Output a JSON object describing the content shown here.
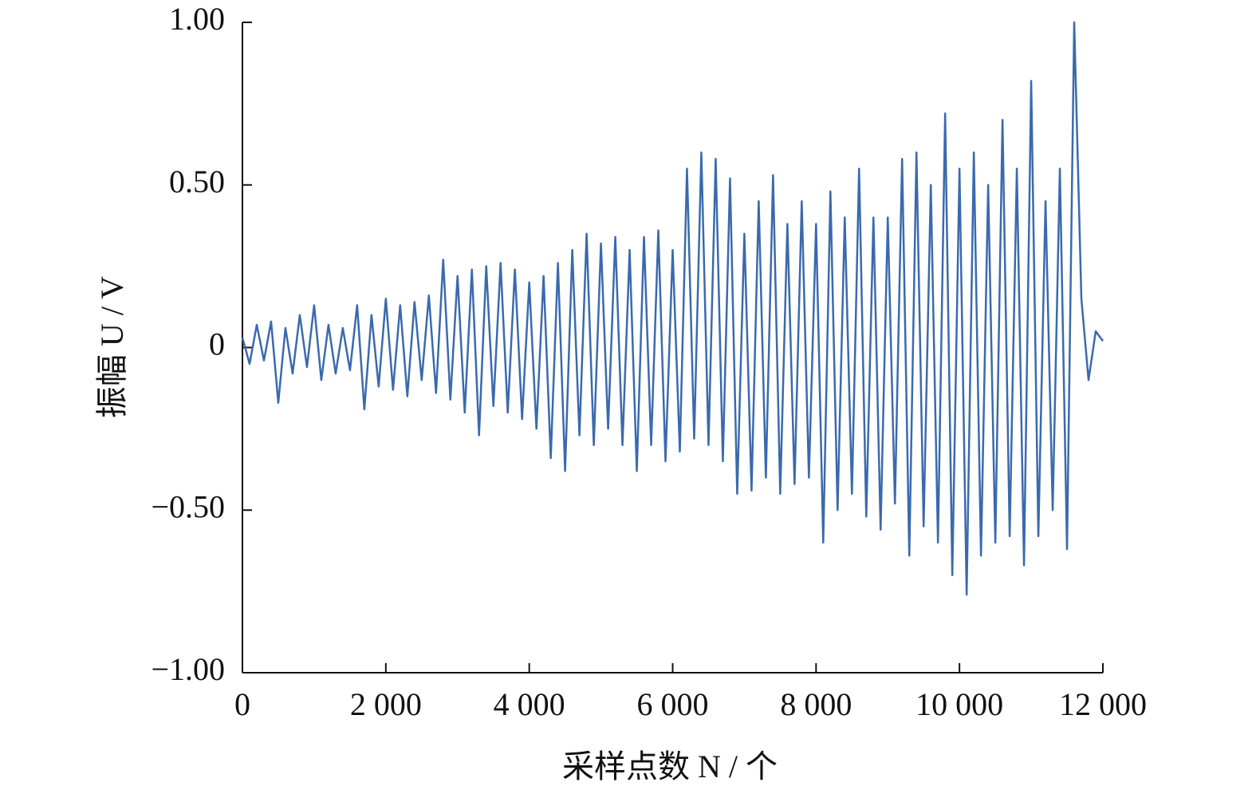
{
  "chart_data": {
    "type": "line",
    "x_label": "采样点数 N / 个",
    "y_label": "振幅 U / V",
    "xlim": [
      0,
      12000
    ],
    "ylim": [
      -1,
      1
    ],
    "xticks": [
      0,
      {
        "value": 2000,
        "label": "2 000"
      },
      {
        "value": 4000,
        "label": "4 000"
      },
      {
        "value": 6000,
        "label": "6 000"
      },
      {
        "value": 8000,
        "label": "8 000"
      },
      {
        "value": 10000,
        "label": "10 000"
      },
      {
        "value": 12000,
        "label": "12 000"
      }
    ],
    "yticks": [
      {
        "value": -1,
        "label": "−1.00"
      },
      {
        "value": -0.5,
        "label": "−0.50"
      },
      0,
      {
        "value": 0.5,
        "label": "0.50"
      },
      {
        "value": 1,
        "label": "1.00"
      }
    ],
    "grid": false,
    "x": [
      0,
      100,
      200,
      300,
      400,
      500,
      600,
      700,
      800,
      900,
      1000,
      1100,
      1200,
      1300,
      1400,
      1500,
      1600,
      1700,
      1800,
      1900,
      2000,
      2100,
      2200,
      2300,
      2400,
      2500,
      2600,
      2700,
      2800,
      2900,
      3000,
      3100,
      3200,
      3300,
      3400,
      3500,
      3600,
      3700,
      3800,
      3900,
      4000,
      4100,
      4200,
      4300,
      4400,
      4500,
      4600,
      4700,
      4800,
      4900,
      5000,
      5100,
      5200,
      5300,
      5400,
      5500,
      5600,
      5700,
      5800,
      5900,
      6000,
      6100,
      6200,
      6300,
      6400,
      6500,
      6600,
      6700,
      6800,
      6900,
      7000,
      7100,
      7200,
      7300,
      7400,
      7500,
      7600,
      7700,
      7800,
      7900,
      8000,
      8100,
      8200,
      8300,
      8400,
      8500,
      8600,
      8700,
      8800,
      8900,
      9000,
      9100,
      9200,
      9300,
      9400,
      9500,
      9600,
      9700,
      9800,
      9900,
      10000,
      10100,
      10200,
      10300,
      10400,
      10500,
      10600,
      10700,
      10800,
      10900,
      11000,
      11100,
      11200,
      11300,
      11400,
      11500,
      11600,
      11700,
      11800,
      11900,
      12000
    ],
    "series": [
      {
        "color": "#3a6aae",
        "values": [
          0.03,
          -0.05,
          0.07,
          -0.04,
          0.08,
          -0.17,
          0.06,
          -0.08,
          0.1,
          -0.06,
          0.13,
          -0.1,
          0.07,
          -0.08,
          0.06,
          -0.07,
          0.13,
          -0.19,
          0.1,
          -0.12,
          0.15,
          -0.13,
          0.13,
          -0.15,
          0.14,
          -0.1,
          0.16,
          -0.14,
          0.27,
          -0.16,
          0.22,
          -0.2,
          0.24,
          -0.27,
          0.25,
          -0.18,
          0.26,
          -0.2,
          0.24,
          -0.22,
          0.2,
          -0.25,
          0.22,
          -0.34,
          0.26,
          -0.38,
          0.3,
          -0.27,
          0.35,
          -0.3,
          0.32,
          -0.25,
          0.34,
          -0.3,
          0.3,
          -0.38,
          0.34,
          -0.3,
          0.36,
          -0.35,
          0.3,
          -0.32,
          0.55,
          -0.28,
          0.6,
          -0.3,
          0.58,
          -0.35,
          0.52,
          -0.45,
          0.35,
          -0.44,
          0.45,
          -0.4,
          0.53,
          -0.45,
          0.38,
          -0.42,
          0.45,
          -0.4,
          0.38,
          -0.6,
          0.48,
          -0.5,
          0.4,
          -0.45,
          0.55,
          -0.52,
          0.4,
          -0.56,
          0.4,
          -0.48,
          0.58,
          -0.64,
          0.6,
          -0.55,
          0.5,
          -0.6,
          0.72,
          -0.7,
          0.55,
          -0.76,
          0.6,
          -0.64,
          0.5,
          -0.6,
          0.7,
          -0.58,
          0.55,
          -0.67,
          0.82,
          -0.58,
          0.45,
          -0.5,
          0.55,
          -0.62,
          1.0,
          0.15,
          -0.1,
          0.05,
          0.02
        ]
      }
    ]
  }
}
